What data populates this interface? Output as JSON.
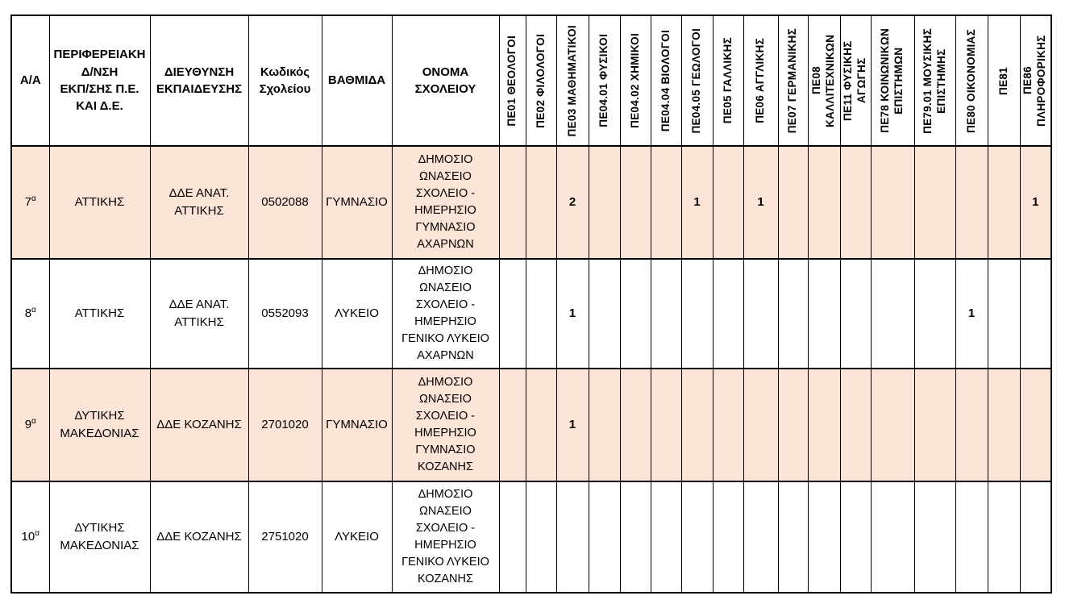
{
  "table": {
    "colors": {
      "highlight_row": "#FCE4D6",
      "border": "#000000",
      "header_bg": "#FFFFFF",
      "text": "#000000"
    },
    "info_headers": [
      "Α/Α",
      "ΠΕΡΙΦΕΡΕΙΑΚΗ\nΔ/ΝΣΗ\nΕΚΠ/ΣΗΣ Π.Ε.\nΚΑΙ Δ.Ε.",
      "ΔΙΕΥΘΥΝΣΗ\nΕΚΠΑΙΔΕΥΣΗΣ",
      "Κωδικός\nΣχολείου",
      "ΒΑΘΜΙΔΑ",
      "ΟΝΟΜΑ\nΣΧΟΛΕΙΟΥ"
    ],
    "specialty_headers": [
      "ΠΕ01 ΘΕΟΛΟΓΟΙ",
      "ΠΕ02 ΦΙΛΟΛΟΓΟΙ",
      "ΠΕ03 ΜΑΘΗΜΑΤΙΚΟΙ",
      "ΠΕ04.01 ΦΥΣΙΚΟΙ",
      "ΠΕ04.02 ΧΗΜΙΚΟΙ",
      "ΠΕ04.04 ΒΙΟΛΟΓΟΙ",
      "ΠΕ04.05 ΓΕΩΛΟΓΟΙ",
      "ΠΕ05 ΓΑΛΛΙΚΗΣ",
      "ΠΕ06 ΑΓΓΛΙΚΗΣ",
      "ΠΕ07 ΓΕΡΜΑΝΙΚΗΣ",
      "ΠΕ08 ΚΑΛΛΙΤΕΧΝΙΚΩΝ",
      "ΠΕ11 ΦΥΣΙΚΗΣ ΑΓΩΓΗΣ",
      "ΠΕ78 ΚΟΙΝΩΝΙΚΩΝ\nΕΠΙΣΤΗΜΩΝ",
      "ΠΕ79.01 ΜΟΥΣΙΚΗΣ\nΕΠΙΣΤΗΜΗΣ",
      "ΠΕ80 ΟΙΚΟΝΟΜΙΑΣ",
      "ΠΕ81",
      "ΠΕ86 ΠΛΗΡΟΦΟΡΙΚΗΣ"
    ],
    "rows": [
      {
        "num": "7",
        "num_suffix": "α",
        "region": "ΑΤΤΙΚΗΣ",
        "directorate": "ΔΔΕ ΑΝΑΤ.\nΑΤΤΙΚΗΣ",
        "school_code": "0502088",
        "level": "ΓΥΜΝΑΣΙΟ",
        "school_name": "ΔΗΜΟΣΙΟ\nΩΝΑΣΕΙΟ\nΣΧΟΛΕΙΟ -\nΗΜΕΡΗΣΙΟ\nΓΥΜΝΑΣΙΟ\nΑΧΑΡΝΩΝ",
        "highlighted": true,
        "counts": [
          "",
          "",
          "2",
          "",
          "",
          "",
          "1",
          "",
          "1",
          "",
          "",
          "",
          "",
          "",
          "",
          "",
          "1"
        ]
      },
      {
        "num": "8",
        "num_suffix": "α",
        "region": "ΑΤΤΙΚΗΣ",
        "directorate": "ΔΔΕ ΑΝΑΤ.\nΑΤΤΙΚΗΣ",
        "school_code": "0552093",
        "level": "ΛΥΚΕΙΟ",
        "school_name": "ΔΗΜΟΣΙΟ\nΩΝΑΣΕΙΟ\nΣΧΟΛΕΙΟ -\nΗΜΕΡΗΣΙΟ\nΓΕΝΙΚΟ ΛΥΚΕΙΟ\nΑΧΑΡΝΩΝ",
        "highlighted": false,
        "counts": [
          "",
          "",
          "1",
          "",
          "",
          "",
          "",
          "",
          "",
          "",
          "",
          "",
          "",
          "",
          "1",
          "",
          ""
        ]
      },
      {
        "num": "9",
        "num_suffix": "α",
        "region": "ΔΥΤΙΚΗΣ\nΜΑΚΕΔΟΝΙΑΣ",
        "directorate": "ΔΔΕ ΚΟΖΑΝΗΣ",
        "school_code": "2701020",
        "level": "ΓΥΜΝΑΣΙΟ",
        "school_name": "ΔΗΜΟΣΙΟ\nΩΝΑΣΕΙΟ\nΣΧΟΛΕΙΟ -\nΗΜΕΡΗΣΙΟ\nΓΥΜΝΑΣΙΟ\nΚΟΖΑΝΗΣ",
        "highlighted": true,
        "counts": [
          "",
          "",
          "1",
          "",
          "",
          "",
          "",
          "",
          "",
          "",
          "",
          "",
          "",
          "",
          "",
          "",
          ""
        ]
      },
      {
        "num": "10",
        "num_suffix": "α",
        "region": "ΔΥΤΙΚΗΣ\nΜΑΚΕΔΟΝΙΑΣ",
        "directorate": "ΔΔΕ ΚΟΖΑΝΗΣ",
        "school_code": "2751020",
        "level": "ΛΥΚΕΙΟ",
        "school_name": "ΔΗΜΟΣΙΟ\nΩΝΑΣΕΙΟ\nΣΧΟΛΕΙΟ -\nΗΜΕΡΗΣΙΟ\nΓΕΝΙΚΟ ΛΥΚΕΙΟ\nΚΟΖΑΝΗΣ",
        "highlighted": false,
        "counts": [
          "",
          "",
          "",
          "",
          "",
          "",
          "",
          "",
          "",
          "",
          "",
          "",
          "",
          "",
          "",
          "",
          ""
        ]
      }
    ]
  }
}
